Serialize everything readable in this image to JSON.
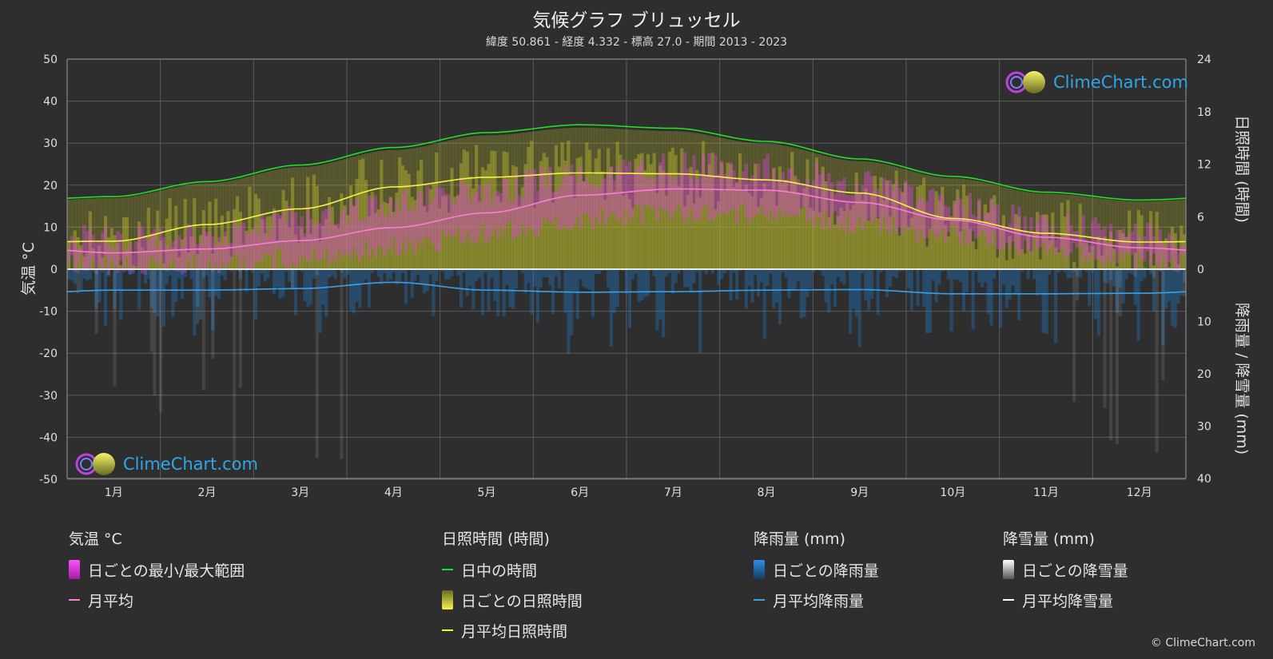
{
  "header": {
    "title": "気候グラフ ブリュッセル",
    "subtitle": "緯度 50.861 - 経度 4.332 - 標高 27.0 - 期間 2013 - 2023"
  },
  "logo": {
    "text": "ClimeChart.com"
  },
  "copyright": "© ClimeChart.com",
  "legend": {
    "temperature": {
      "heading": "気温 °C",
      "range_label": "日ごとの最小/最大範囲",
      "avg_label": "月平均"
    },
    "sunshine": {
      "heading": "日照時間 (時間)",
      "daylight_label": "日中の時間",
      "daily_label": "日ごとの日照時間",
      "avg_label": "月平均日照時間"
    },
    "rain": {
      "heading": "降雨量 (mm)",
      "daily_label": "日ごとの降雨量",
      "avg_label": "月平均降雨量"
    },
    "snow": {
      "heading": "降雪量 (mm)",
      "daily_label": "日ごとの降雪量",
      "avg_label": "月平均降雪量"
    }
  },
  "colors": {
    "background": "#2e2e2e",
    "grid": "#5a5a5a",
    "temp_range": "#e040e0",
    "temp_avg": "#ff7ad9",
    "daylight": "#22e022",
    "sunshine_daily": "#b8b82e",
    "sunshine_avg": "#f4f44a",
    "rain": "#1e7fd0",
    "rain_avg": "#3aa0e8",
    "snow": "#bbbbbb",
    "snow_avg": "#ffffff",
    "logo_text": "#2ea7e8"
  },
  "chart_data": {
    "type": "line",
    "categories": [
      "1月",
      "2月",
      "3月",
      "4月",
      "5月",
      "6月",
      "7月",
      "8月",
      "9月",
      "10月",
      "11月",
      "12月"
    ],
    "y_left": {
      "label": "気温 °C",
      "range": [
        -50,
        50
      ],
      "ticks": [
        50,
        40,
        30,
        20,
        10,
        0,
        -10,
        -20,
        -30,
        -40,
        -50
      ]
    },
    "y_right_top": {
      "label": "日照時間 (時間)",
      "range": [
        0,
        24
      ],
      "ticks": [
        24,
        18,
        12,
        6,
        0
      ]
    },
    "y_right_bottom": {
      "label": "降雨量 / 降雪量 (mm)",
      "range": [
        0,
        40
      ],
      "ticks": [
        10,
        20,
        30,
        40
      ]
    },
    "grid": true,
    "series": [
      {
        "name": "日中の時間",
        "axis": "sunshine",
        "values": [
          8.3,
          10.0,
          11.9,
          13.9,
          15.6,
          16.5,
          16.1,
          14.6,
          12.6,
          10.6,
          8.8,
          7.9
        ]
      },
      {
        "name": "月平均日照時間",
        "axis": "sunshine",
        "values": [
          3.2,
          5.1,
          6.9,
          9.4,
          10.5,
          11.0,
          10.9,
          10.2,
          8.7,
          5.8,
          4.1,
          3.1
        ]
      },
      {
        "name": "月平均",
        "axis": "temperature",
        "values": [
          3.9,
          4.8,
          6.8,
          9.9,
          13.4,
          17.6,
          19.1,
          18.8,
          15.9,
          11.7,
          7.6,
          5.1
        ]
      },
      {
        "name": "月平均降雨量",
        "axis": "precipitation",
        "values": [
          4.0,
          4.0,
          3.7,
          2.5,
          4.0,
          4.4,
          4.3,
          4.0,
          3.9,
          4.7,
          4.7,
          4.6
        ]
      },
      {
        "name": "月平均降雪量",
        "axis": "precipitation",
        "values": [
          0,
          0,
          0,
          0,
          0,
          0,
          0,
          0,
          0,
          0,
          0,
          0
        ]
      }
    ],
    "temp_range": {
      "min": [
        1.0,
        1.2,
        2.8,
        5.0,
        8.5,
        11.8,
        13.6,
        13.3,
        10.9,
        8.0,
        4.7,
        2.2
      ],
      "max": [
        7.0,
        8.5,
        11.8,
        15.8,
        19.0,
        22.5,
        24.5,
        24.0,
        20.6,
        15.5,
        10.6,
        7.6
      ]
    }
  }
}
